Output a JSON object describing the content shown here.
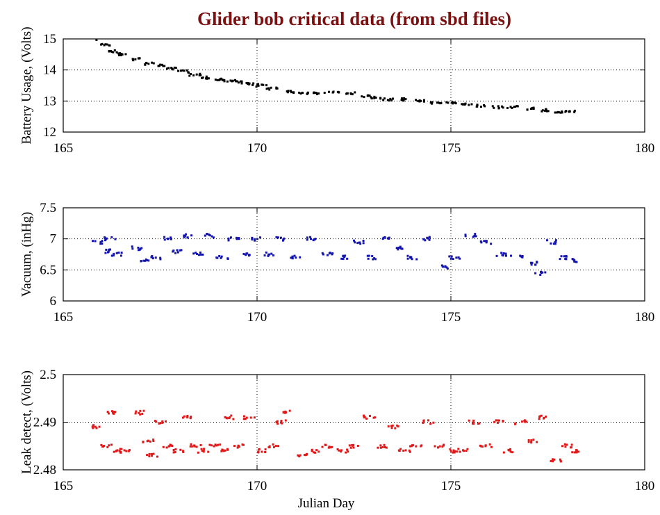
{
  "chart_data": {
    "title": "Glider bob critical data (from sbd files)",
    "xlabel": "Julian Day",
    "panels": [
      {
        "type": "scatter",
        "ylabel": "Battery Usage, (Volts)",
        "color": "#000000",
        "xlim": [
          165,
          180
        ],
        "ylim": [
          12,
          15
        ],
        "xticks": [
          "165",
          "170",
          "175",
          "180"
        ],
        "yticks": [
          "12",
          "13",
          "14",
          "15"
        ],
        "grid": "dotted",
        "series": [
          {
            "x": [
              165.9,
              166.1,
              166.3,
              166.5,
              166.9,
              167.2,
              167.5,
              167.8,
              168.1,
              168.4,
              168.7,
              169.0,
              169.3,
              169.6,
              169.9,
              170.1,
              170.4,
              170.8,
              171.2,
              171.6,
              172.0,
              172.4,
              172.8,
              173.1,
              173.4,
              173.8,
              174.2,
              174.6,
              175.0,
              175.4,
              175.8,
              176.2,
              176.6,
              177.0,
              177.4,
              177.8,
              178.1
            ],
            "y": [
              15.0,
              14.8,
              14.6,
              14.5,
              14.35,
              14.2,
              14.15,
              14.05,
              13.95,
              13.85,
              13.75,
              13.7,
              13.65,
              13.6,
              13.55,
              13.5,
              13.4,
              13.3,
              13.25,
              13.25,
              13.3,
              13.25,
              13.15,
              13.1,
              13.05,
              13.05,
              13.0,
              12.95,
              12.95,
              12.9,
              12.85,
              12.8,
              12.8,
              12.75,
              12.7,
              12.65,
              12.65
            ]
          }
        ]
      },
      {
        "type": "scatter",
        "ylabel": "Vacuum, (inHg)",
        "color": "#1515b0",
        "xlim": [
          165,
          180
        ],
        "ylim": [
          6,
          7.5
        ],
        "xticks": [
          "165",
          "170",
          "175",
          "180"
        ],
        "yticks": [
          "6",
          "6.5",
          "7",
          "7.5"
        ],
        "grid": "dotted",
        "series": [
          {
            "x": [
              165.9,
              166.1,
              166.2,
              166.4,
              166.9,
              167.1,
              167.4,
              167.7,
              167.9,
              168.2,
              168.5,
              168.8,
              169.1,
              169.4,
              169.7,
              170.0,
              170.3,
              170.6,
              171.0,
              171.4,
              171.8,
              172.2,
              172.6,
              173.0,
              173.3,
              173.6,
              174.0,
              174.4,
              174.8,
              175.1,
              175.5,
              175.9,
              176.3,
              176.7,
              177.1,
              177.3,
              177.6,
              177.9,
              178.1
            ],
            "y": [
              6.95,
              6.8,
              7.0,
              6.75,
              6.85,
              6.65,
              6.7,
              7.0,
              6.8,
              7.05,
              6.75,
              7.05,
              6.7,
              7.0,
              6.75,
              7.0,
              6.75,
              7.0,
              6.7,
              7.0,
              6.75,
              6.7,
              6.95,
              6.7,
              7.0,
              6.85,
              6.7,
              7.0,
              6.55,
              6.7,
              7.05,
              6.95,
              6.75,
              6.7,
              6.6,
              6.45,
              6.95,
              6.7,
              6.65
            ]
          }
        ]
      },
      {
        "type": "scatter",
        "ylabel": "Leak detect, (Volts)",
        "color": "#e01a1a",
        "xlim": [
          165,
          180
        ],
        "ylim": [
          2.48,
          2.5
        ],
        "xticks": [
          "165",
          "170",
          "175",
          "180"
        ],
        "yticks": [
          "2.48",
          "2.49",
          "2.5"
        ],
        "grid": "dotted",
        "series": [
          {
            "x": [
              165.9,
              166.1,
              166.2,
              166.4,
              166.6,
              167.0,
              167.2,
              167.3,
              167.5,
              167.7,
              168.0,
              168.2,
              168.4,
              168.6,
              168.9,
              169.1,
              169.3,
              169.5,
              169.8,
              170.1,
              170.4,
              170.6,
              170.8,
              171.2,
              171.5,
              171.8,
              172.2,
              172.5,
              172.9,
              173.2,
              173.5,
              173.8,
              174.1,
              174.4,
              174.7,
              175.0,
              175.3,
              175.6,
              175.9,
              176.2,
              176.5,
              176.8,
              177.1,
              177.4,
              177.7,
              178.0,
              178.2
            ],
            "y": [
              2.489,
              2.485,
              2.492,
              2.484,
              2.484,
              2.492,
              2.486,
              2.483,
              2.49,
              2.485,
              2.484,
              2.491,
              2.485,
              2.484,
              2.485,
              2.484,
              2.491,
              2.485,
              2.491,
              2.484,
              2.485,
              2.49,
              2.492,
              2.483,
              2.484,
              2.485,
              2.484,
              2.485,
              2.491,
              2.485,
              2.489,
              2.484,
              2.485,
              2.49,
              2.485,
              2.484,
              2.484,
              2.49,
              2.485,
              2.49,
              2.484,
              2.49,
              2.486,
              2.491,
              2.482,
              2.485,
              2.484
            ]
          }
        ]
      }
    ]
  }
}
